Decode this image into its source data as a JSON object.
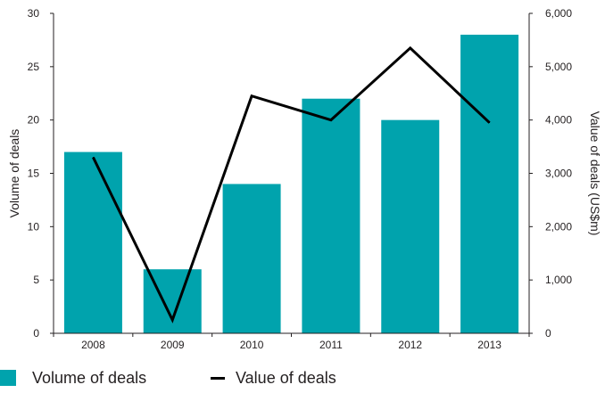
{
  "chart_data": {
    "type": "bar",
    "categories": [
      "2008",
      "2009",
      "2010",
      "2011",
      "2012",
      "2013"
    ],
    "series": [
      {
        "name": "Volume of deals",
        "type": "bar",
        "axis": "left",
        "values": [
          17,
          6,
          14,
          22,
          20,
          28
        ],
        "color": "#00a3ad"
      },
      {
        "name": "Value of deals",
        "type": "line",
        "axis": "right",
        "values": [
          3300,
          250,
          4450,
          4000,
          5350,
          3950
        ],
        "color": "#000000"
      }
    ],
    "ylabel": "Volume of deals",
    "y2label": "Value of deals (US$m)",
    "ylim": [
      0,
      30
    ],
    "y2lim": [
      0,
      6000
    ],
    "yticks": [
      "0",
      "5",
      "10",
      "15",
      "20",
      "25",
      "30"
    ],
    "y2ticks": [
      "0",
      "1,000",
      "2,000",
      "3,000",
      "4,000",
      "5,000",
      "6,000"
    ],
    "grid": false,
    "legend_position": "bottom-left"
  },
  "legend": {
    "volume_label": "Volume of deals",
    "value_label": "Value of deals"
  }
}
